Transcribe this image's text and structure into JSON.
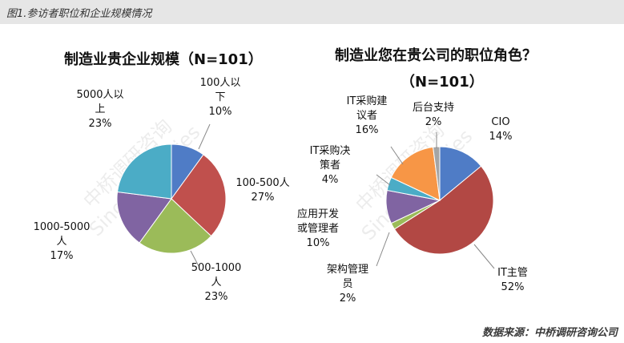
{
  "header": {
    "title": "图1.参访者职位和企业规模情况"
  },
  "source": "数据来源：中桥调研咨询公司",
  "watermark": {
    "cn": "中桥调研咨询",
    "en": "Sino-Strategies"
  },
  "chart_data": [
    {
      "type": "pie",
      "title": "制造业贵企业规模（N=101）",
      "slices": [
        {
          "label": "100人以下",
          "label_lines": [
            "100人以",
            "下"
          ],
          "pct_text": "10%",
          "value": 10,
          "color": "#4f7cc6"
        },
        {
          "label": "100-500人",
          "label_lines": [
            "100-500人"
          ],
          "pct_text": "27%",
          "value": 27,
          "color": "#c0504d"
        },
        {
          "label": "500-1000人",
          "label_lines": [
            "500-1000",
            "人"
          ],
          "pct_text": "23%",
          "value": 23,
          "color": "#9bbb59"
        },
        {
          "label": "1000-5000人",
          "label_lines": [
            "1000-5000",
            "人"
          ],
          "pct_text": "17%",
          "value": 17,
          "color": "#8064a2"
        },
        {
          "label": "5000人以上",
          "label_lines": [
            "5000人以",
            "上"
          ],
          "pct_text": "23%",
          "value": 23,
          "color": "#4bacc6"
        }
      ]
    },
    {
      "type": "pie",
      "title": "制造业您在贵公司的职位角色？",
      "title_line2": "（N=101）",
      "slices": [
        {
          "label": "CIO",
          "label_lines": [
            "CIO"
          ],
          "pct_text": "14%",
          "value": 14,
          "color": "#4f7cc6"
        },
        {
          "label": "IT主管",
          "label_lines": [
            "IT主管"
          ],
          "pct_text": "52%",
          "value": 52,
          "color": "#b24844"
        },
        {
          "label": "架构管理员",
          "label_lines": [
            "架构管理",
            "员"
          ],
          "pct_text": "2%",
          "value": 2,
          "color": "#9bbb59"
        },
        {
          "label": "应用开发或管理者",
          "label_lines": [
            "应用开发",
            "或管理者"
          ],
          "pct_text": "10%",
          "value": 10,
          "color": "#8064a2"
        },
        {
          "label": "IT采购决策者",
          "label_lines": [
            "IT采购决",
            "策者"
          ],
          "pct_text": "4%",
          "value": 4,
          "color": "#4bacc6"
        },
        {
          "label": "IT采购建议者",
          "label_lines": [
            "IT采购建",
            "议者"
          ],
          "pct_text": "16%",
          "value": 16,
          "color": "#f79646"
        },
        {
          "label": "后台支持",
          "label_lines": [
            "后台支持"
          ],
          "pct_text": "2%",
          "value": 2,
          "color": "#a5a5a5"
        }
      ]
    }
  ]
}
